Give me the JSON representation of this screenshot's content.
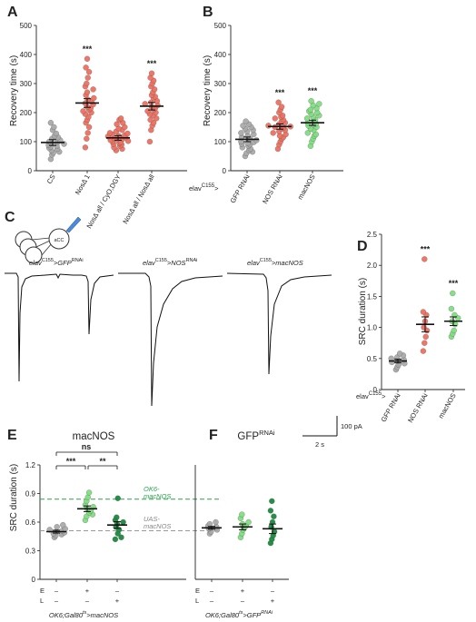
{
  "colors": {
    "grey": "#aaaaaa",
    "red": "#f07060",
    "lightgreen": "#80df80",
    "darkgreen": "#1a8a3e",
    "dash_green": "#2aa44a",
    "dash_grey": "#999999"
  },
  "panel_labels": [
    "A",
    "B",
    "C",
    "D",
    "E",
    "F"
  ],
  "genotype_prefix": "elav",
  "genotype_sup": "C155",
  "genotype_gt": ">",
  "trace_labels": [
    {
      "sup": "C155",
      "tail": ">GFP",
      "tailsup": "RNAi"
    },
    {
      "sup": "C155",
      "tail": ">NOS",
      "tailsup": "RNAi"
    },
    {
      "sup": "C155",
      "tail": ">macNOS",
      "tailsup": ""
    }
  ],
  "trace_scale": {
    "amp": "100 pA",
    "time": "2 s"
  },
  "schematic_label": "aCC",
  "panelE": {
    "title": "macNOS",
    "ok6_1": "OK6-",
    "ok6_2": "macNOS",
    "uas_1": "UAS-",
    "uas_2": "macNOS",
    "sig1": "***",
    "sig2": "**",
    "sig3": "ns",
    "genotype": "OK6;Gal80",
    "genotype_sup": "ts",
    "genotype_tail": ">macNOS"
  },
  "panelF": {
    "title": "GFP",
    "title_sup": "RNAi",
    "genotype": "OK6;Gal80",
    "genotype_sup": "ts",
    "genotype_tail": ">GFP",
    "genotype_tail_sup": "RNAi"
  },
  "el_rows": {
    "E": "E",
    "L": "L",
    "cols": [
      [
        "–",
        "–"
      ],
      [
        "+",
        "–"
      ],
      [
        "–",
        "+"
      ]
    ]
  },
  "chart_data": [
    {
      "id": "A",
      "type": "scatter",
      "ylabel": "Recovery time (s)",
      "ylim": [
        0,
        500
      ],
      "yticks": [
        0,
        100,
        200,
        300,
        400,
        500
      ],
      "categories": [
        {
          "label": "CS",
          "color": "grey",
          "mean": 97,
          "sem": 10,
          "sig": "",
          "values": [
            40,
            55,
            62,
            65,
            70,
            75,
            78,
            82,
            85,
            88,
            92,
            95,
            98,
            100,
            105,
            110,
            115,
            120,
            128,
            140,
            150,
            165
          ]
        },
        {
          "label": "NosΔ 1",
          "color": "red",
          "mean": 233,
          "sem": 15,
          "sig": "***",
          "values": [
            80,
            110,
            130,
            150,
            165,
            175,
            185,
            195,
            200,
            205,
            210,
            215,
            220,
            228,
            232,
            238,
            245,
            250,
            260,
            270,
            280,
            290,
            300,
            320,
            340,
            355,
            385
          ]
        },
        {
          "label": "NosΔ all / CyO,DGY",
          "color": "red",
          "mean": 113,
          "sem": 8,
          "sig": "",
          "values": [
            70,
            75,
            80,
            85,
            90,
            92,
            95,
            98,
            100,
            102,
            105,
            108,
            110,
            112,
            115,
            118,
            120,
            122,
            125,
            128,
            130,
            135,
            140,
            145,
            150,
            160,
            165,
            175,
            180
          ]
        },
        {
          "label": "NosΔ all / NosΔ all",
          "color": "red",
          "mean": 222,
          "sem": 13,
          "sig": "***",
          "values": [
            100,
            140,
            155,
            165,
            175,
            180,
            190,
            195,
            200,
            205,
            210,
            215,
            220,
            225,
            230,
            235,
            240,
            250,
            255,
            260,
            270,
            280,
            290,
            300,
            310,
            320,
            335
          ]
        }
      ]
    },
    {
      "id": "B",
      "type": "scatter",
      "ylabel": "Recovery time (s)",
      "ylim": [
        0,
        500
      ],
      "yticks": [
        0,
        100,
        200,
        300,
        400,
        500
      ],
      "categories": [
        {
          "label": "GFP RNAi",
          "color": "grey",
          "mean": 108,
          "sem": 8,
          "sig": "",
          "values": [
            50,
            60,
            65,
            70,
            75,
            80,
            85,
            90,
            92,
            95,
            98,
            100,
            105,
            108,
            110,
            115,
            120,
            125,
            130,
            135,
            140,
            145,
            150,
            155,
            160,
            170
          ]
        },
        {
          "label": "NOS RNAi",
          "color": "red",
          "mean": 152,
          "sem": 9,
          "sig": "***",
          "values": [
            75,
            90,
            100,
            110,
            115,
            120,
            125,
            130,
            135,
            140,
            145,
            148,
            150,
            152,
            155,
            160,
            165,
            170,
            175,
            180,
            185,
            190,
            200,
            210,
            220,
            235
          ]
        },
        {
          "label": "macNOS",
          "color": "lightgreen",
          "mean": 165,
          "sem": 9,
          "sig": "***",
          "values": [
            85,
            100,
            110,
            120,
            125,
            130,
            140,
            145,
            150,
            155,
            160,
            162,
            165,
            170,
            175,
            180,
            185,
            190,
            195,
            200,
            205,
            210,
            215,
            225,
            230,
            240
          ]
        }
      ]
    },
    {
      "id": "D",
      "type": "scatter",
      "ylabel": "SRC duration (s)",
      "ylim": [
        0,
        2.5
      ],
      "yticks": [
        0,
        0.5,
        1.0,
        1.5,
        2.0,
        2.5
      ],
      "categories": [
        {
          "label": "GFP RNAi",
          "color": "grey",
          "mean": 0.46,
          "sem": 0.03,
          "sig": "",
          "values": [
            0.32,
            0.36,
            0.4,
            0.42,
            0.44,
            0.46,
            0.48,
            0.5,
            0.52,
            0.55,
            0.58
          ]
        },
        {
          "label": "NOS RNAi",
          "color": "red",
          "mean": 1.05,
          "sem": 0.12,
          "sig": "***",
          "values": [
            0.62,
            0.75,
            0.85,
            0.95,
            1.0,
            1.1,
            1.2,
            1.25,
            2.1
          ]
        },
        {
          "label": "macNOS",
          "color": "lightgreen",
          "mean": 1.1,
          "sem": 0.07,
          "sig": "***",
          "values": [
            0.85,
            0.9,
            0.95,
            1.05,
            1.1,
            1.15,
            1.2,
            1.3,
            1.55
          ]
        }
      ]
    },
    {
      "id": "E",
      "type": "scatter",
      "ylabel": "SRC duration (s)",
      "ylim": [
        0,
        1.2
      ],
      "yticks": [
        0,
        0.3,
        0.6,
        0.9,
        1.2
      ],
      "reference_lines": [
        {
          "y": 0.84,
          "color": "dash_green"
        },
        {
          "y": 0.51,
          "color": "dash_grey"
        }
      ],
      "categories": [
        {
          "label": "--",
          "color": "grey",
          "mean": 0.5,
          "sem": 0.015,
          "values": [
            0.44,
            0.46,
            0.47,
            0.48,
            0.49,
            0.5,
            0.51,
            0.52,
            0.53,
            0.55,
            0.57
          ]
        },
        {
          "label": "+-",
          "color": "lightgreen",
          "mean": 0.74,
          "sem": 0.03,
          "values": [
            0.62,
            0.66,
            0.68,
            0.7,
            0.72,
            0.74,
            0.76,
            0.78,
            0.82,
            0.86,
            0.91
          ]
        },
        {
          "label": "-+",
          "color": "darkgreen",
          "mean": 0.57,
          "sem": 0.035,
          "values": [
            0.42,
            0.44,
            0.48,
            0.52,
            0.55,
            0.58,
            0.6,
            0.62,
            0.65,
            0.85
          ]
        }
      ]
    },
    {
      "id": "F",
      "type": "scatter",
      "ylabel": "",
      "ylim": [
        0,
        1.2
      ],
      "yticks": [],
      "categories": [
        {
          "label": "--",
          "color": "grey",
          "mean": 0.54,
          "sem": 0.015,
          "values": [
            0.48,
            0.5,
            0.52,
            0.53,
            0.54,
            0.55,
            0.56,
            0.58,
            0.6
          ]
        },
        {
          "label": "+-",
          "color": "lightgreen",
          "mean": 0.55,
          "sem": 0.03,
          "values": [
            0.44,
            0.48,
            0.52,
            0.54,
            0.56,
            0.58,
            0.6,
            0.64,
            0.68
          ]
        },
        {
          "label": "-+",
          "color": "darkgreen",
          "mean": 0.53,
          "sem": 0.05,
          "values": [
            0.38,
            0.42,
            0.46,
            0.5,
            0.55,
            0.6,
            0.66,
            0.72,
            0.82
          ]
        }
      ]
    }
  ]
}
